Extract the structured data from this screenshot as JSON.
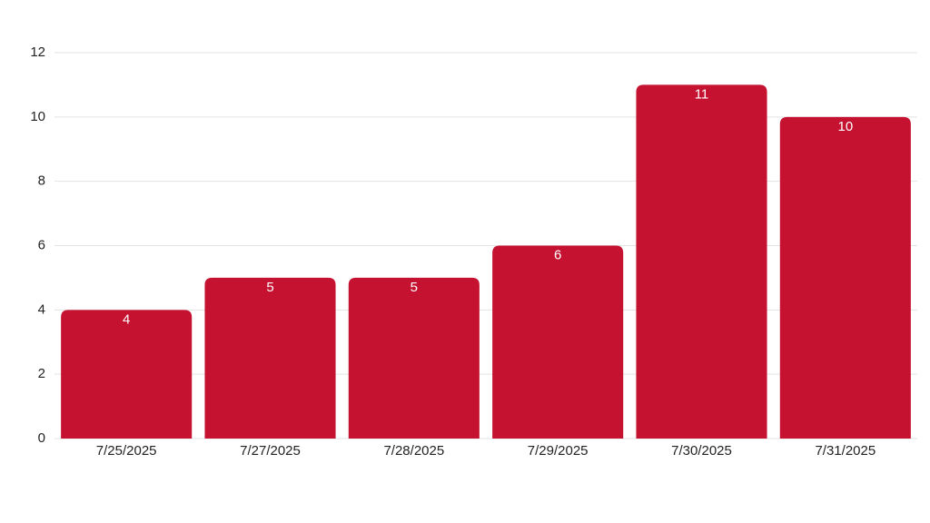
{
  "chart_data": {
    "type": "bar",
    "categories": [
      "7/25/2025",
      "7/27/2025",
      "7/28/2025",
      "7/29/2025",
      "7/30/2025",
      "7/31/2025"
    ],
    "values": [
      4,
      5,
      5,
      6,
      11,
      10
    ],
    "color": "#c41230",
    "ylim": [
      0,
      12
    ],
    "yticks": [
      0,
      2,
      4,
      6,
      8,
      10,
      12
    ],
    "grid": true,
    "data_labels": true
  }
}
